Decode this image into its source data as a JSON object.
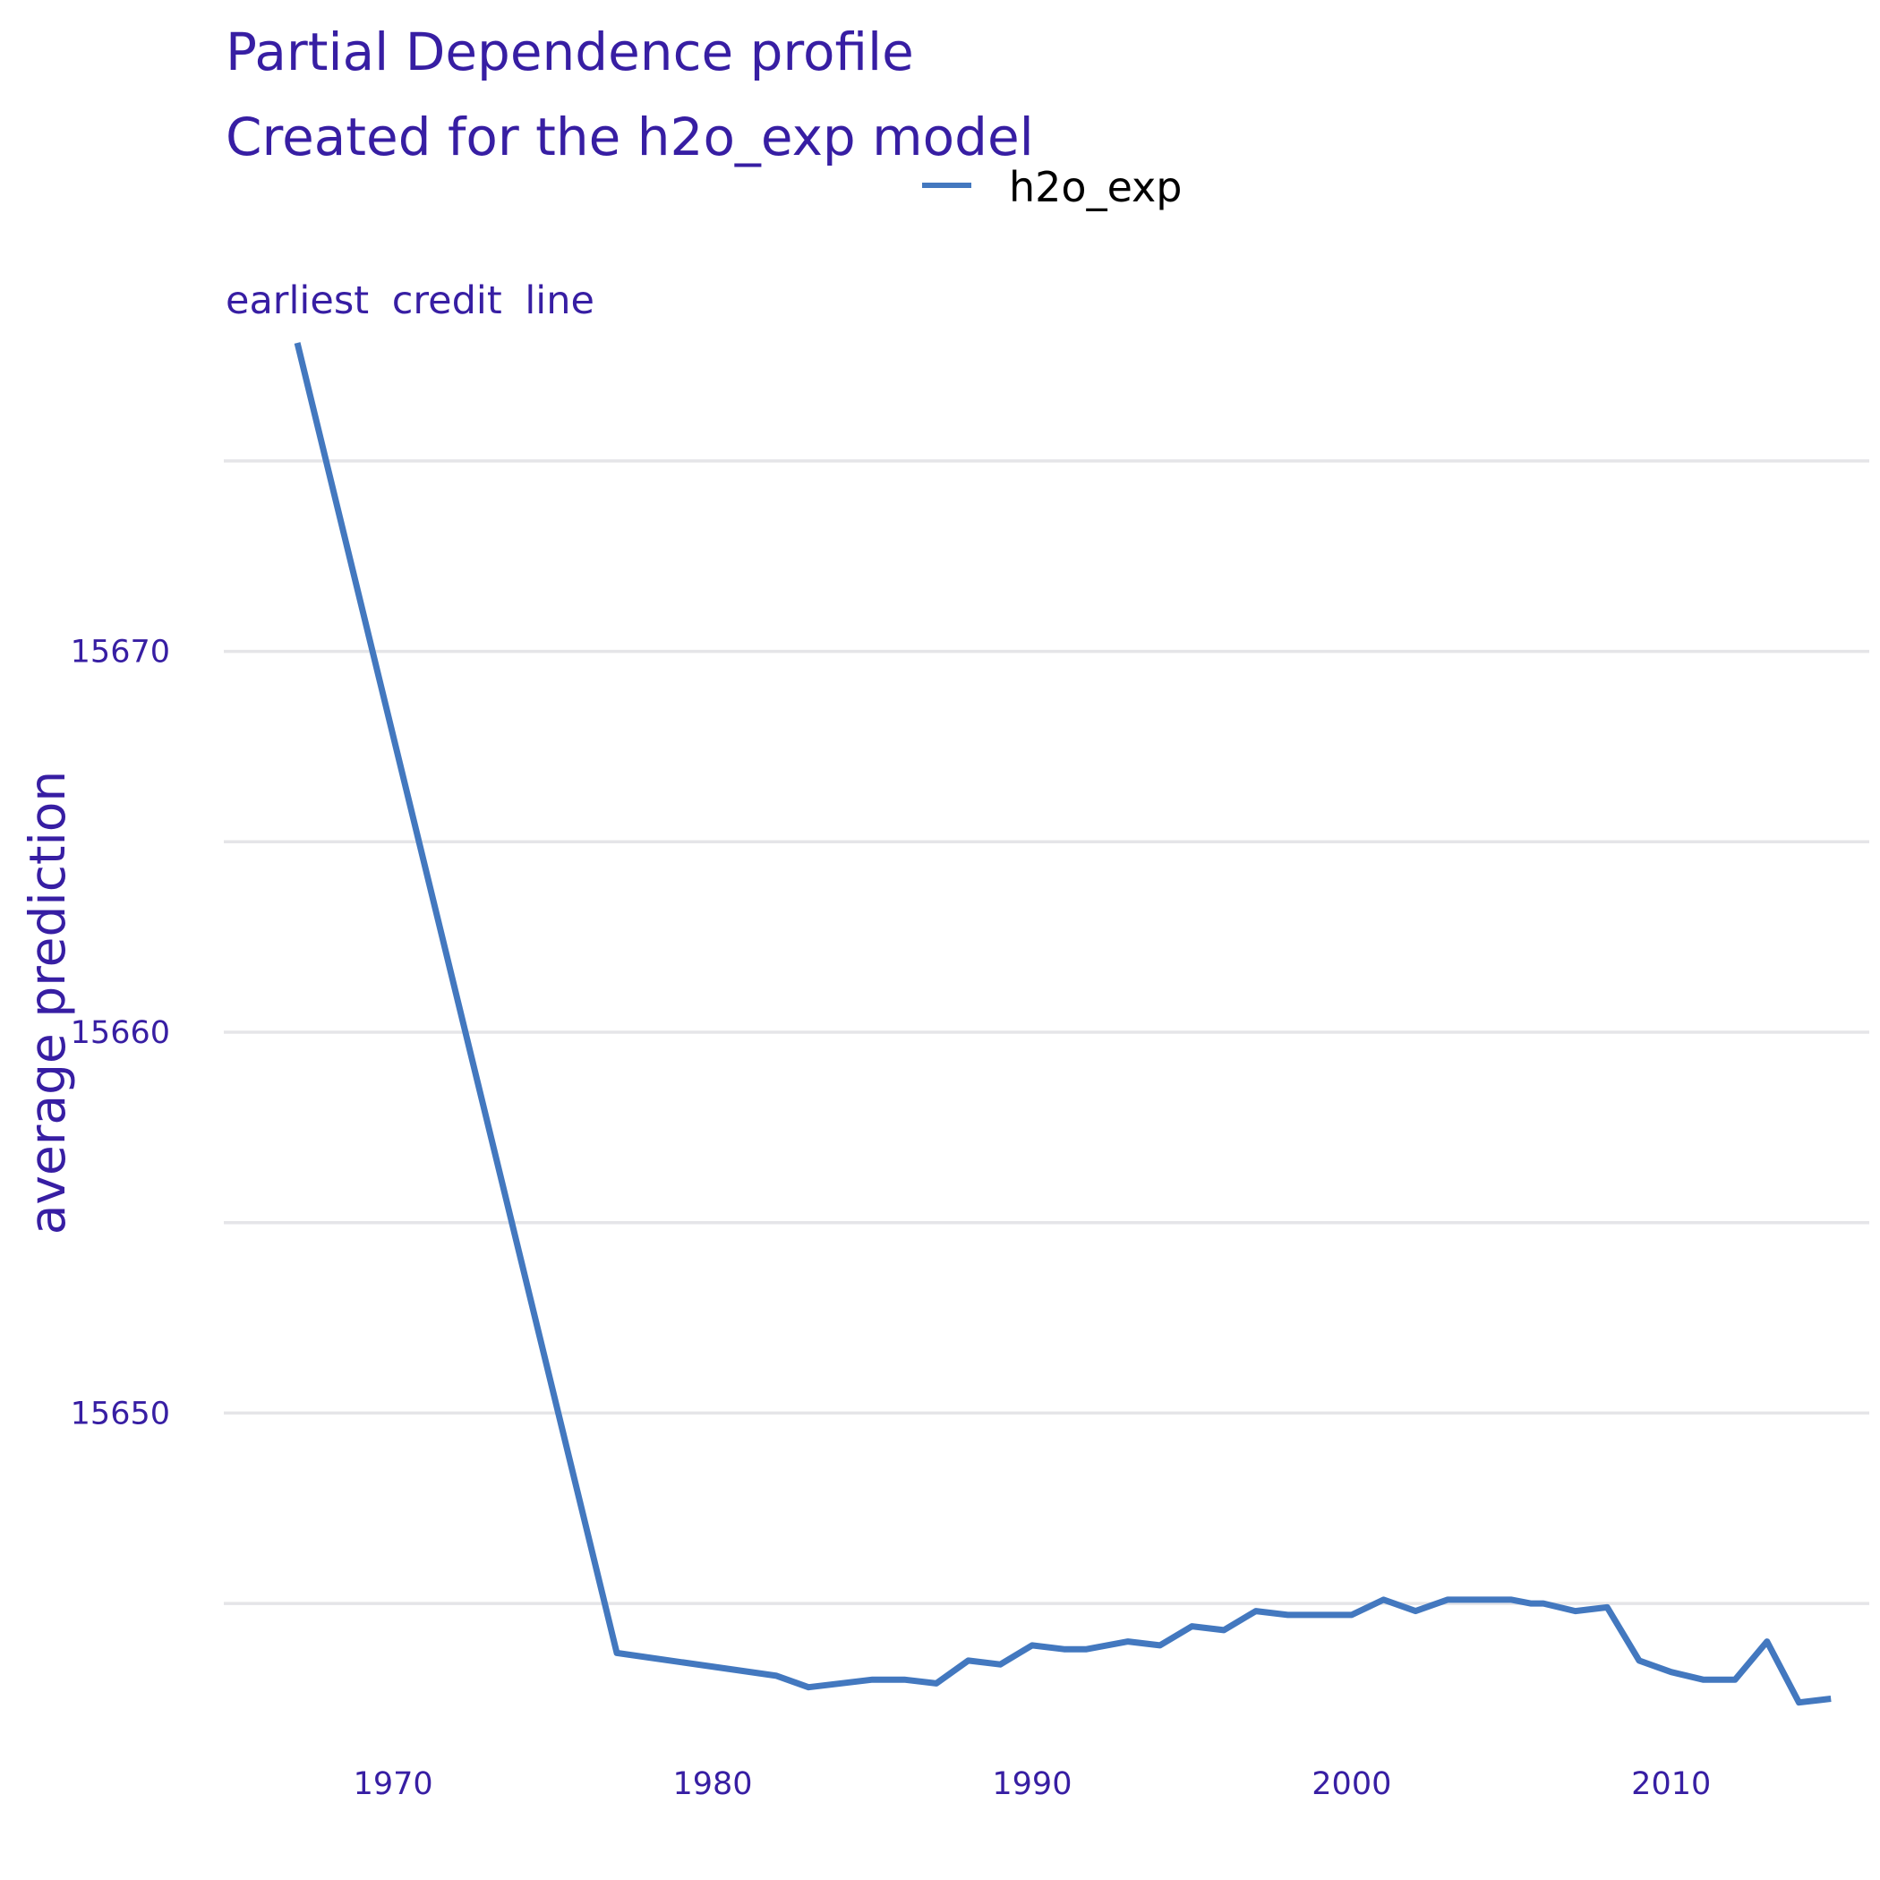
{
  "colors": {
    "text": "#371ea3",
    "series": "#4378bf",
    "grid": "#e5e5e8",
    "legend_text": "#000000"
  },
  "chart_data": {
    "type": "line",
    "title": "Partial Dependence profile",
    "subtitle": "Created for the h2o_exp model",
    "facet_label": "earliest_credit_line",
    "xlabel": "",
    "ylabel": "average prediction",
    "xlim": [
      1964.7,
      2016.2
    ],
    "ylim": [
      15641.5,
      15677.7
    ],
    "x_ticks": [
      1970,
      1980,
      1990,
      2000,
      2010
    ],
    "y_ticks": [
      15650,
      15660,
      15670
    ],
    "y_gridlines": [
      15645,
      15650,
      15655,
      15660,
      15665,
      15670,
      15675
    ],
    "grid": true,
    "legend_position": "top",
    "series": [
      {
        "name": "h2o_exp",
        "x": [
          1967,
          1977,
          1982,
          1983,
          1985,
          1986,
          1987,
          1988,
          1989,
          1990,
          1991,
          1991.7,
          1993,
          1994,
          1995,
          1996,
          1997,
          1998,
          2000,
          2001,
          2002,
          2003,
          2004,
          2005,
          2005.6,
          2006,
          2007,
          2008,
          2009,
          2010,
          2011,
          2012,
          2013,
          2014,
          2015
        ],
        "y": [
          15678.1,
          15643.7,
          15643.1,
          15642.8,
          15643.0,
          15643.0,
          15642.9,
          15643.5,
          15643.4,
          15643.9,
          15643.8,
          15643.8,
          15644.0,
          15643.9,
          15644.4,
          15644.3,
          15644.8,
          15644.7,
          15644.7,
          15645.1,
          15644.8,
          15645.1,
          15645.1,
          15645.1,
          15645.0,
          15645.0,
          15644.8,
          15644.9,
          15643.5,
          15643.2,
          15643.0,
          15643.0,
          15644.0,
          15642.4,
          15642.5
        ]
      }
    ]
  }
}
